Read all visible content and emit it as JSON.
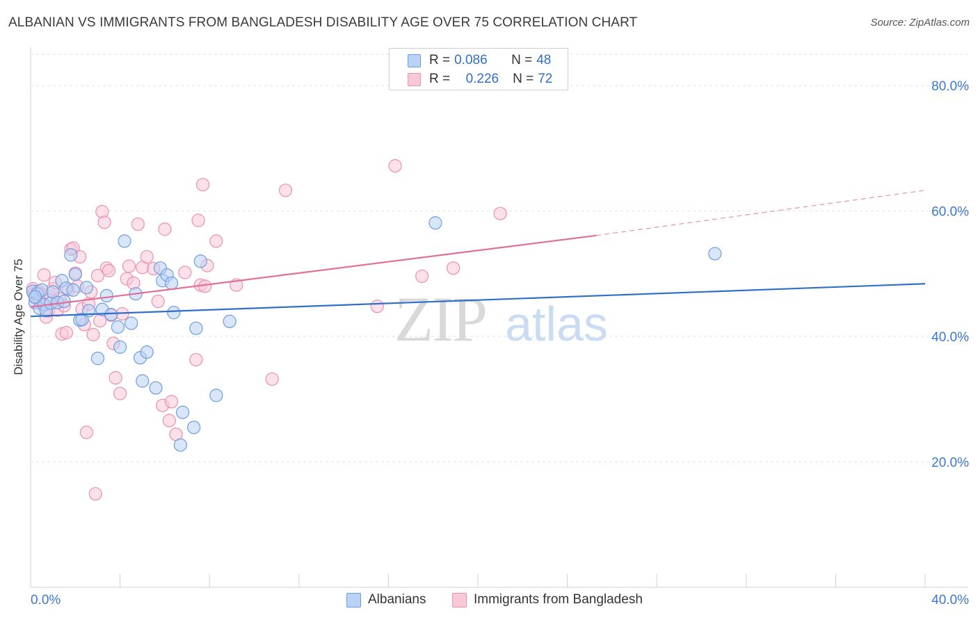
{
  "title": "ALBANIAN VS IMMIGRANTS FROM BANGLADESH DISABILITY AGE OVER 75 CORRELATION CHART",
  "source": "Source: ZipAtlas.com",
  "watermark": {
    "zip": "ZIP",
    "atlas": "atlas"
  },
  "legend": {
    "rows": [
      {
        "r_label": "R =",
        "r_value": "0.086",
        "n_label": "N =",
        "n_value": "48"
      },
      {
        "r_label": "R =",
        "r_value": "0.226",
        "n_label": "N =",
        "n_value": "72"
      }
    ]
  },
  "bottom_legend": {
    "blue": "Albanians",
    "pink": "Immigrants from Bangladesh"
  },
  "colors": {
    "blue_fill": "#b9d2f5",
    "blue_stroke": "#6a9de0",
    "blue_line": "#2f6fc9",
    "pink_fill": "#f9c9d8",
    "pink_stroke": "#ea8fae",
    "pink_line": "#e0709a",
    "tick_label": "#3b78d0",
    "grid": "#e3e3e3"
  },
  "chart_data": {
    "type": "scatter",
    "title": "ALBANIAN VS IMMIGRANTS FROM BANGLADESH DISABILITY AGE OVER 75 CORRELATION CHART",
    "xlabel": "",
    "ylabel": "Disability Age Over 75",
    "xlim": [
      0,
      40
    ],
    "ylim": [
      0,
      85
    ],
    "x_tick_labels": [
      "0.0%",
      "40.0%"
    ],
    "y_ticks": [
      20,
      40,
      60,
      80
    ],
    "y_tick_labels": [
      "20.0%",
      "40.0%",
      "60.0%",
      "80.0%"
    ],
    "grid": true,
    "series": [
      {
        "name": "Albanians",
        "color": "#6a9de0",
        "trend": {
          "x": [
            0,
            40
          ],
          "y": [
            43.2,
            48.4
          ],
          "style": "solid"
        },
        "points": [
          [
            0.1,
            47.2
          ],
          [
            0.2,
            45.4
          ],
          [
            0.3,
            46.8
          ],
          [
            0.4,
            44.5
          ],
          [
            0.5,
            47.4
          ],
          [
            0.6,
            45.1
          ],
          [
            0.7,
            44.1
          ],
          [
            0.9,
            45.3
          ],
          [
            1.0,
            47.1
          ],
          [
            1.2,
            45.4
          ],
          [
            1.4,
            48.9
          ],
          [
            1.5,
            45.6
          ],
          [
            1.6,
            47.7
          ],
          [
            1.8,
            53.0
          ],
          [
            1.9,
            47.4
          ],
          [
            2.0,
            49.9
          ],
          [
            2.2,
            42.6
          ],
          [
            2.3,
            42.7
          ],
          [
            2.5,
            47.8
          ],
          [
            2.6,
            44.1
          ],
          [
            3.0,
            36.5
          ],
          [
            3.2,
            44.3
          ],
          [
            3.4,
            46.5
          ],
          [
            3.6,
            43.5
          ],
          [
            3.9,
            41.5
          ],
          [
            4.0,
            38.3
          ],
          [
            4.2,
            55.2
          ],
          [
            4.5,
            42.1
          ],
          [
            4.7,
            46.8
          ],
          [
            4.9,
            36.6
          ],
          [
            5.0,
            32.9
          ],
          [
            5.2,
            37.5
          ],
          [
            5.6,
            31.8
          ],
          [
            5.8,
            50.9
          ],
          [
            5.9,
            48.9
          ],
          [
            6.1,
            49.8
          ],
          [
            6.3,
            48.5
          ],
          [
            6.4,
            43.8
          ],
          [
            6.7,
            22.7
          ],
          [
            6.8,
            27.9
          ],
          [
            7.3,
            25.5
          ],
          [
            7.4,
            41.3
          ],
          [
            7.6,
            52.0
          ],
          [
            8.3,
            30.6
          ],
          [
            8.9,
            42.4
          ],
          [
            18.1,
            58.1
          ],
          [
            30.6,
            53.2
          ],
          [
            0.2,
            46.3
          ]
        ]
      },
      {
        "name": "Immigrants from Bangladesh",
        "color": "#ea8fae",
        "trend": {
          "x": [
            0,
            25.3
          ],
          "y": [
            44.7,
            56.1
          ],
          "style": "solid",
          "extended": {
            "x": [
              25.3,
              40
            ],
            "y": [
              56.1,
              63.3
            ],
            "style": "dashed"
          }
        },
        "points": [
          [
            0.1,
            47.6
          ],
          [
            0.2,
            46.2
          ],
          [
            0.3,
            47.0
          ],
          [
            0.4,
            45.8
          ],
          [
            0.5,
            46.7
          ],
          [
            0.6,
            49.8
          ],
          [
            0.7,
            43.1
          ],
          [
            0.8,
            44.1
          ],
          [
            0.9,
            46.3
          ],
          [
            1.0,
            47.6
          ],
          [
            1.1,
            48.6
          ],
          [
            1.2,
            44.2
          ],
          [
            1.4,
            40.4
          ],
          [
            1.5,
            44.9
          ],
          [
            1.6,
            40.6
          ],
          [
            1.7,
            47.5
          ],
          [
            1.8,
            53.9
          ],
          [
            1.9,
            54.1
          ],
          [
            2.0,
            50.1
          ],
          [
            2.1,
            48.0
          ],
          [
            2.2,
            52.7
          ],
          [
            2.3,
            44.4
          ],
          [
            2.4,
            41.9
          ],
          [
            2.5,
            24.7
          ],
          [
            2.6,
            45.2
          ],
          [
            2.7,
            47.1
          ],
          [
            2.8,
            40.3
          ],
          [
            2.9,
            14.9
          ],
          [
            3.0,
            49.7
          ],
          [
            3.1,
            42.5
          ],
          [
            3.2,
            59.9
          ],
          [
            3.3,
            58.2
          ],
          [
            3.4,
            50.9
          ],
          [
            3.5,
            50.5
          ],
          [
            3.6,
            43.4
          ],
          [
            3.7,
            38.9
          ],
          [
            3.8,
            33.4
          ],
          [
            4.0,
            30.9
          ],
          [
            4.1,
            43.6
          ],
          [
            4.3,
            49.2
          ],
          [
            4.4,
            51.2
          ],
          [
            4.6,
            48.5
          ],
          [
            4.8,
            57.9
          ],
          [
            5.0,
            51.0
          ],
          [
            5.2,
            52.7
          ],
          [
            5.5,
            50.8
          ],
          [
            5.7,
            45.6
          ],
          [
            5.9,
            29.0
          ],
          [
            6.0,
            57.1
          ],
          [
            6.2,
            26.6
          ],
          [
            6.3,
            29.6
          ],
          [
            6.5,
            24.4
          ],
          [
            6.9,
            50.2
          ],
          [
            7.4,
            36.3
          ],
          [
            7.5,
            58.5
          ],
          [
            7.6,
            48.2
          ],
          [
            7.7,
            64.2
          ],
          [
            7.8,
            48.0
          ],
          [
            7.9,
            51.3
          ],
          [
            8.3,
            55.2
          ],
          [
            9.2,
            48.2
          ],
          [
            10.8,
            33.2
          ],
          [
            11.4,
            63.3
          ],
          [
            15.5,
            44.8
          ],
          [
            16.3,
            67.2
          ],
          [
            17.5,
            49.6
          ],
          [
            18.9,
            50.9
          ],
          [
            21.0,
            59.6
          ],
          [
            0.15,
            46.8
          ],
          [
            0.35,
            47.2
          ],
          [
            0.55,
            45.0
          ],
          [
            1.3,
            46.0
          ]
        ]
      }
    ]
  }
}
